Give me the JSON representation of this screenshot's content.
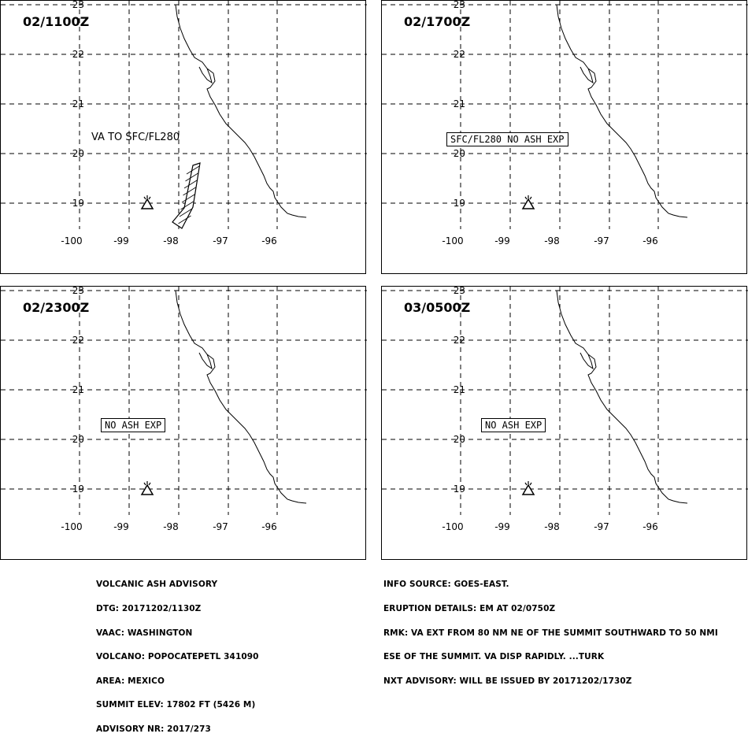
{
  "map": {
    "latitudes": [
      "23",
      "22",
      "21",
      "20",
      "19"
    ],
    "longitudes": [
      "-100",
      "-99",
      "-98",
      "-97",
      "-96"
    ],
    "volcano_marker": "volcano-symbol"
  },
  "panels": [
    {
      "time": "02/1100Z",
      "label": "VA TO SFC/FL280",
      "label_boxed": false,
      "has_ash_polygon": true
    },
    {
      "time": "02/1700Z",
      "label": "SFC/FL280 NO ASH EXP",
      "label_boxed": true,
      "has_ash_polygon": false
    },
    {
      "time": "02/2300Z",
      "label": "NO ASH EXP",
      "label_boxed": true,
      "has_ash_polygon": false
    },
    {
      "time": "03/0500Z",
      "label": "NO ASH EXP",
      "label_boxed": true,
      "has_ash_polygon": false
    }
  ],
  "advisory_left": [
    "VOLCANIC ASH ADVISORY",
    "DTG: 20171202/1130Z",
    "VAAC: WASHINGTON",
    "VOLCANO: POPOCATEPETL 341090",
    "AREA: MEXICO",
    "SUMMIT ELEV: 17802 FT (5426 M)",
    "ADVISORY NR: 2017/273"
  ],
  "advisory_right": [
    "INFO SOURCE: GOES-EAST.",
    "ERUPTION DETAILS: EM AT 02/0750Z",
    "RMK: VA EXT FROM 80 NM NE OF THE SUMMIT SOUTHWARD TO 50 NMI",
    "ESE OF THE SUMMIT. VA DISP RAPIDLY. ...TURK",
    "NXT ADVISORY: WILL BE ISSUED BY 20171202/1730Z"
  ]
}
